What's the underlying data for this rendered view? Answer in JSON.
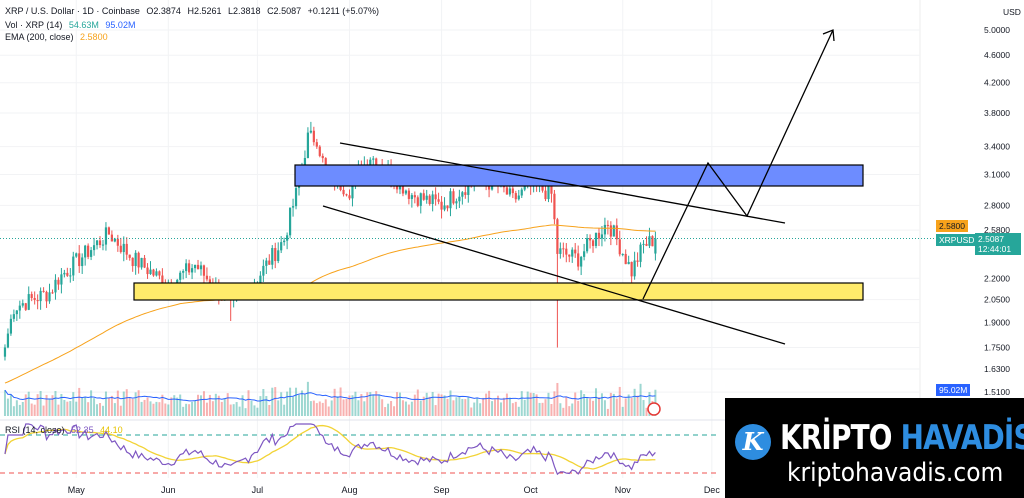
{
  "header": {
    "symbol": "XRP / U.S. Dollar · 1D · Coinbase",
    "open": "O2.3874",
    "high": "H2.5261",
    "low": "L2.3818",
    "close": "C2.5087",
    "change": "+0.1211 (+5.07%)",
    "vol_label": "Vol · XRP (14)",
    "vol_value": "54.63M",
    "vol_ma": "95.02M",
    "ema_label": "EMA (200, close)",
    "ema_value": "2.5800"
  },
  "rsi": {
    "label": "RSI (14, close)",
    "value": "52.35",
    "ma": "44.10"
  },
  "axis": {
    "currency": "USD",
    "ema_tag": "2.5800",
    "price_tag": "2.5087",
    "countdown": "12:44:01",
    "symbol_tag": "XRPUSD",
    "vol_tag": "95.02M"
  },
  "colors": {
    "up": "#26a69a",
    "down": "#ef5350",
    "ema": "#f7a21b",
    "rsi": "#7e57c2",
    "rsi_ma": "#f2d335",
    "vol_ma": "#2962ff",
    "resistance_zone": "#6d8cff",
    "support_zone": "#ffeb6b"
  },
  "chart_data": {
    "type": "candlestick",
    "scale": "log",
    "yticks": [
      5.0,
      4.6,
      4.2,
      3.8,
      3.4,
      3.1,
      2.8,
      2.58,
      2.2,
      2.05,
      1.9,
      1.75,
      1.63,
      1.51
    ],
    "ytick_labels": [
      "5.0000",
      "4.6000",
      "4.2000",
      "3.8000",
      "3.4000",
      "3.1000",
      "2.8000",
      "2.5800",
      "2.2000",
      "2.0500",
      "1.9000",
      "1.7500",
      "1.6300",
      "1.5100"
    ],
    "xticks": [
      "May",
      "Jun",
      "Jul",
      "Aug",
      "Sep",
      "Oct",
      "Nov",
      "Dec"
    ],
    "price_path": [
      [
        "2025-04-07",
        1.75
      ],
      [
        "2025-04-10",
        2.0
      ],
      [
        "2025-04-22",
        2.1
      ],
      [
        "2025-04-25",
        2.2
      ],
      [
        "2025-05-12",
        2.55
      ],
      [
        "2025-05-20",
        2.35
      ],
      [
        "2025-06-01",
        2.15
      ],
      [
        "2025-06-10",
        2.3
      ],
      [
        "2025-06-22",
        2.0
      ],
      [
        "2025-07-01",
        2.2
      ],
      [
        "2025-07-10",
        2.5
      ],
      [
        "2025-07-14",
        2.9
      ],
      [
        "2025-07-18",
        3.5
      ],
      [
        "2025-07-21",
        3.5
      ],
      [
        "2025-07-24",
        3.1
      ],
      [
        "2025-08-01",
        2.95
      ],
      [
        "2025-08-08",
        3.3
      ],
      [
        "2025-08-15",
        3.1
      ],
      [
        "2025-08-22",
        2.9
      ],
      [
        "2025-09-01",
        2.8
      ],
      [
        "2025-09-12",
        3.05
      ],
      [
        "2025-09-20",
        3.0
      ],
      [
        "2025-09-25",
        2.85
      ],
      [
        "2025-10-02",
        3.0
      ],
      [
        "2025-10-08",
        2.9
      ],
      [
        "2025-10-10",
        2.4
      ],
      [
        "2025-10-17",
        2.35
      ],
      [
        "2025-10-27",
        2.65
      ],
      [
        "2025-11-04",
        2.25
      ],
      [
        "2025-11-08",
        2.45
      ],
      [
        "2025-11-12",
        2.5087
      ]
    ],
    "extreme_wicks": [
      [
        "2025-06-22",
        1.91
      ],
      [
        "2025-10-10",
        1.75
      ]
    ],
    "annotations": [
      "resistance zone 3.00–3.20",
      "support zone 2.05–2.17",
      "descending channel",
      "projected bounce arrow to ~5.0"
    ]
  },
  "brand": {
    "word1": "KRİPTO",
    "word2": "HAVADİS",
    "url": "kriptohavadis.com"
  }
}
